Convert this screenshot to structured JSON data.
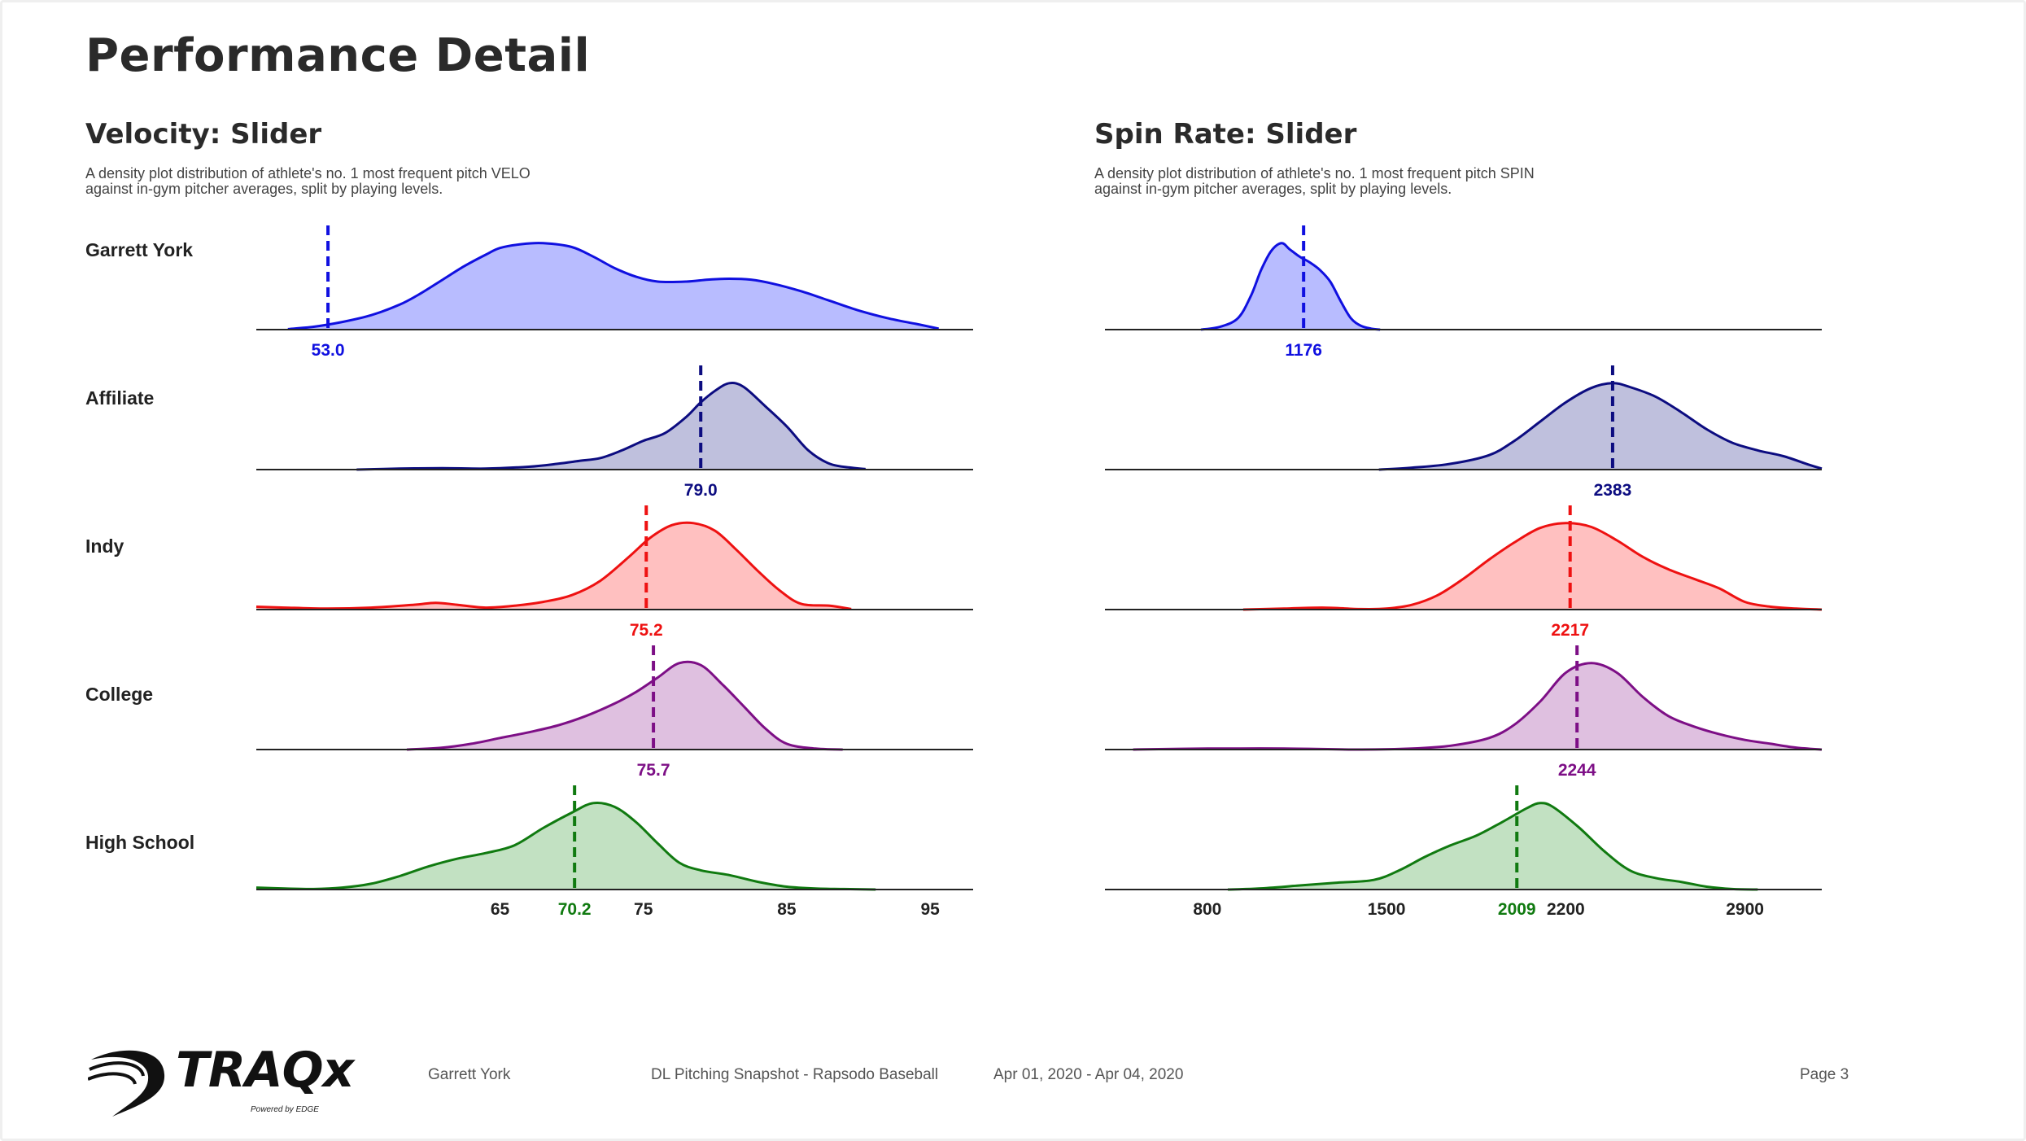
{
  "page": {
    "title": "Performance Detail"
  },
  "sections": {
    "velocity": {
      "title": "Velocity: Slider",
      "desc_line1": "A density plot distribution of athlete's no. 1 most frequent pitch VELO",
      "desc_line2": "against in-gym pitcher averages, split by playing levels."
    },
    "spin": {
      "title": "Spin Rate: Slider",
      "desc_line1": "A density plot distribution of athlete's no. 1 most frequent pitch SPIN",
      "desc_line2": "against in-gym pitcher averages, split by playing levels."
    }
  },
  "rows": [
    {
      "label": "Garrett York",
      "color": "#1010e0",
      "fill": "#b8bcff"
    },
    {
      "label": "Affiliate",
      "color": "#0c0c80",
      "fill": "#bfc0dd"
    },
    {
      "label": "Indy",
      "color": "#ee1111",
      "fill": "#ffc0c0"
    },
    {
      "label": "College",
      "color": "#7d0f86",
      "fill": "#dfc0e0"
    },
    {
      "label": "High School",
      "color": "#107a10",
      "fill": "#c2e1c2"
    }
  ],
  "chart_data": [
    {
      "type": "area",
      "title": "Velocity: Slider",
      "xlim": [
        48,
        98
      ],
      "xticks": [
        65,
        75,
        85,
        95
      ],
      "series": [
        {
          "name": "Garrett York",
          "median": "53.0",
          "median_value": 53.0,
          "x": [
            50.2,
            52,
            54,
            56,
            58,
            59.5,
            61,
            62.5,
            64,
            65,
            66.5,
            68,
            70,
            71.5,
            73,
            74.5,
            76,
            78,
            79.5,
            81,
            82.5,
            84,
            86,
            88,
            90,
            92,
            94,
            95.6
          ],
          "y": [
            0.005,
            0.03,
            0.08,
            0.15,
            0.26,
            0.38,
            0.52,
            0.66,
            0.78,
            0.85,
            0.89,
            0.9,
            0.86,
            0.76,
            0.64,
            0.55,
            0.5,
            0.5,
            0.52,
            0.53,
            0.52,
            0.48,
            0.4,
            0.3,
            0.2,
            0.12,
            0.06,
            0.01
          ]
        },
        {
          "name": "Affiliate",
          "median": "79.0",
          "median_value": 79.0,
          "x": [
            55,
            58,
            61,
            64,
            67,
            69,
            70.5,
            72,
            73.5,
            75,
            76.5,
            78,
            79,
            80,
            81,
            82,
            83.5,
            85,
            86.5,
            88,
            89.5,
            90.5
          ],
          "y": [
            0,
            0.01,
            0.015,
            0.01,
            0.03,
            0.06,
            0.09,
            0.12,
            0.2,
            0.3,
            0.38,
            0.55,
            0.7,
            0.82,
            0.9,
            0.86,
            0.66,
            0.45,
            0.2,
            0.06,
            0.02,
            0.005
          ]
        },
        {
          "name": "Indy",
          "median": "75.2",
          "median_value": 75.2,
          "x": [
            48,
            50,
            53,
            56,
            59,
            60.5,
            62,
            64,
            66,
            68,
            70,
            72,
            74,
            75.5,
            77,
            78.5,
            80,
            81.5,
            83,
            84.5,
            86,
            88,
            89.5
          ],
          "y": [
            0.03,
            0.02,
            0.01,
            0.02,
            0.05,
            0.07,
            0.05,
            0.02,
            0.04,
            0.08,
            0.15,
            0.3,
            0.55,
            0.75,
            0.88,
            0.9,
            0.82,
            0.62,
            0.4,
            0.2,
            0.06,
            0.04,
            0.005
          ]
        },
        {
          "name": "College",
          "median": "75.7",
          "median_value": 75.7,
          "x": [
            58.5,
            61,
            63,
            65,
            67,
            69,
            71,
            73,
            74.5,
            76,
            77.5,
            79,
            80.5,
            82,
            83.5,
            85,
            87,
            88.9
          ],
          "y": [
            0,
            0.02,
            0.06,
            0.12,
            0.18,
            0.25,
            0.35,
            0.48,
            0.6,
            0.75,
            0.9,
            0.88,
            0.68,
            0.45,
            0.22,
            0.06,
            0.01,
            0
          ]
        },
        {
          "name": "High School",
          "median": "70.2",
          "median_value": 70.2,
          "x": [
            48,
            50,
            52,
            54,
            56,
            58,
            60,
            62,
            64,
            66,
            68,
            70,
            71.5,
            73,
            74.5,
            76,
            77.5,
            79,
            81,
            83,
            85,
            87,
            89,
            91.2
          ],
          "y": [
            0.02,
            0.01,
            0.005,
            0.02,
            0.06,
            0.14,
            0.24,
            0.32,
            0.38,
            0.46,
            0.64,
            0.8,
            0.9,
            0.86,
            0.7,
            0.48,
            0.28,
            0.2,
            0.15,
            0.08,
            0.03,
            0.01,
            0.005,
            0
          ]
        }
      ]
    },
    {
      "type": "area",
      "title": "Spin Rate: Slider",
      "xlim": [
        400,
        3200
      ],
      "xticks": [
        800,
        1500,
        2200,
        2900
      ],
      "series": [
        {
          "name": "Garrett York",
          "median": "1176",
          "median_value": 1176,
          "x": [
            775,
            850,
            920,
            970,
            1010,
            1050,
            1090,
            1120,
            1160,
            1200,
            1240,
            1280,
            1320,
            1360,
            1400,
            1440,
            1475
          ],
          "y": [
            0,
            0.03,
            0.12,
            0.35,
            0.62,
            0.82,
            0.9,
            0.84,
            0.76,
            0.7,
            0.62,
            0.5,
            0.3,
            0.12,
            0.04,
            0.01,
            0
          ]
        },
        {
          "name": "Affiliate",
          "median": "2383",
          "median_value": 2383,
          "x": [
            1470,
            1600,
            1750,
            1900,
            2000,
            2100,
            2200,
            2300,
            2383,
            2450,
            2550,
            2650,
            2750,
            2850,
            2950,
            3050,
            3150,
            3200
          ],
          "y": [
            0,
            0.02,
            0.06,
            0.15,
            0.3,
            0.5,
            0.7,
            0.85,
            0.9,
            0.86,
            0.76,
            0.6,
            0.42,
            0.28,
            0.2,
            0.14,
            0.05,
            0.01
          ]
        },
        {
          "name": "Indy",
          "median": "2217",
          "median_value": 2217,
          "x": [
            940,
            1100,
            1250,
            1400,
            1500,
            1600,
            1700,
            1800,
            1900,
            2000,
            2100,
            2200,
            2300,
            2400,
            2500,
            2600,
            2700,
            2800,
            2900,
            3000,
            3100,
            3200
          ],
          "y": [
            0,
            0.01,
            0.02,
            0.005,
            0.01,
            0.05,
            0.15,
            0.32,
            0.52,
            0.7,
            0.85,
            0.9,
            0.86,
            0.72,
            0.55,
            0.42,
            0.32,
            0.22,
            0.08,
            0.03,
            0.01,
            0
          ]
        },
        {
          "name": "College",
          "median": "2244",
          "median_value": 2244,
          "x": [
            510,
            800,
            1100,
            1400,
            1600,
            1750,
            1900,
            2000,
            2100,
            2200,
            2300,
            2400,
            2500,
            2600,
            2700,
            2800,
            2900,
            3000,
            3100,
            3200
          ],
          "y": [
            0,
            0.01,
            0.01,
            0,
            0.01,
            0.04,
            0.12,
            0.26,
            0.5,
            0.8,
            0.9,
            0.8,
            0.55,
            0.35,
            0.24,
            0.16,
            0.1,
            0.06,
            0.02,
            0
          ]
        },
        {
          "name": "High School",
          "median": "2009",
          "median_value": 2009,
          "x": [
            880,
            1000,
            1150,
            1300,
            1450,
            1550,
            1650,
            1750,
            1850,
            1950,
            2050,
            2100,
            2150,
            2250,
            2350,
            2450,
            2550,
            2650,
            2750,
            2850,
            2950
          ],
          "y": [
            0,
            0.01,
            0.04,
            0.07,
            0.1,
            0.2,
            0.34,
            0.46,
            0.56,
            0.7,
            0.85,
            0.9,
            0.86,
            0.65,
            0.4,
            0.2,
            0.12,
            0.08,
            0.03,
            0.005,
            0
          ]
        }
      ]
    }
  ],
  "footer": {
    "logo_text": "TRAQx",
    "logo_sub": "Powered by EDGE",
    "athlete": "Garrett York",
    "report": "DL Pitching Snapshot - Rapsodo Baseball",
    "dates": "Apr 01, 2020 - Apr 04, 2020",
    "page": "Page 3"
  }
}
